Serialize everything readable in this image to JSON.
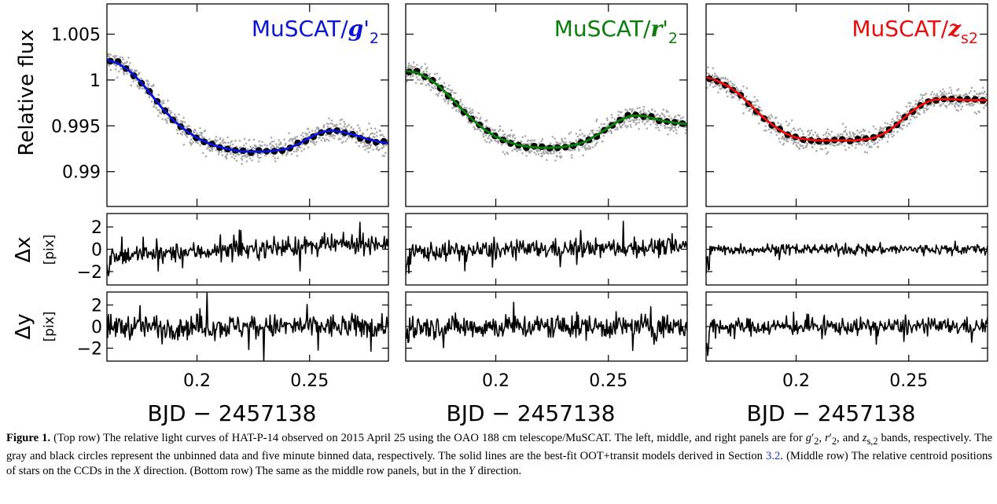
{
  "figure": {
    "xlabel": "BJD − 2457138",
    "xlim": [
      0.16,
      0.285
    ],
    "xticks": [
      "0.2",
      "0.25"
    ],
    "flux_ylabel": "Relative  flux",
    "flux_ylim": [
      0.9862,
      1.0083
    ],
    "flux_yticks": [
      "1.005",
      "1",
      "0.995",
      "0.99"
    ],
    "dx_label": "Δx",
    "dy_label": "Δy",
    "pix_label": "[pix]",
    "centroid_ylim": [
      -3.2,
      3.2
    ],
    "centroid_yticks": [
      "2",
      "0",
      "−2"
    ]
  },
  "panels": [
    {
      "band": "g",
      "title_prefix": "MuSCAT/",
      "title_filter": "g",
      "title_prime": "'",
      "title_sub": "2",
      "color": "#0a14d9"
    },
    {
      "band": "r",
      "title_prefix": "MuSCAT/",
      "title_filter": "r",
      "title_prime": "'",
      "title_sub": "2",
      "color": "#0a7d0a"
    },
    {
      "band": "z",
      "title_prefix": "MuSCAT/",
      "title_filter": "z",
      "title_prime": "",
      "title_sub": "s2",
      "color": "#e80e0e"
    }
  ],
  "chart_data": [
    {
      "type": "line",
      "title": "MuSCAT/g'2",
      "ylabel": "Relative flux",
      "xlabel": "BJD − 2457138",
      "xlim": [
        0.16,
        0.285
      ],
      "ylim": [
        0.9862,
        1.0083
      ],
      "series": [
        {
          "name": "model",
          "color": "#0a14d9",
          "x": [
            0.16,
            0.165,
            0.17,
            0.175,
            0.18,
            0.185,
            0.19,
            0.195,
            0.2,
            0.205,
            0.21,
            0.215,
            0.22,
            0.225,
            0.23,
            0.235,
            0.24,
            0.245,
            0.25,
            0.255,
            0.26,
            0.265,
            0.27,
            0.275,
            0.28,
            0.285
          ],
          "y": [
            1.0022,
            1.0018,
            1.001,
            0.9998,
            0.9983,
            0.9968,
            0.9955,
            0.9945,
            0.9937,
            0.9931,
            0.9927,
            0.9924,
            0.9922,
            0.9922,
            0.9922,
            0.9923,
            0.9925,
            0.993,
            0.9937,
            0.9943,
            0.9945,
            0.9943,
            0.994,
            0.9936,
            0.9933,
            0.9931
          ]
        }
      ]
    },
    {
      "type": "line",
      "title": "MuSCAT/r'2",
      "ylabel": "Relative flux",
      "xlabel": "BJD − 2457138",
      "xlim": [
        0.16,
        0.285
      ],
      "ylim": [
        0.9862,
        1.0083
      ],
      "series": [
        {
          "name": "model",
          "color": "#0a7d0a",
          "x": [
            0.16,
            0.165,
            0.17,
            0.175,
            0.18,
            0.185,
            0.19,
            0.195,
            0.2,
            0.205,
            0.21,
            0.215,
            0.22,
            0.225,
            0.23,
            0.235,
            0.24,
            0.245,
            0.25,
            0.255,
            0.26,
            0.265,
            0.27,
            0.275,
            0.28,
            0.285
          ],
          "y": [
            1.001,
            1.0008,
            1.0002,
            0.9993,
            0.9981,
            0.9968,
            0.9956,
            0.9946,
            0.9938,
            0.9933,
            0.9929,
            0.9927,
            0.9926,
            0.9926,
            0.9927,
            0.9929,
            0.9933,
            0.994,
            0.9948,
            0.9956,
            0.9961,
            0.9961,
            0.9958,
            0.9955,
            0.9953,
            0.9952
          ]
        }
      ]
    },
    {
      "type": "line",
      "title": "MuSCAT/zs2",
      "ylabel": "Relative flux",
      "xlabel": "BJD − 2457138",
      "xlim": [
        0.16,
        0.285
      ],
      "ylim": [
        0.9862,
        1.0083
      ],
      "series": [
        {
          "name": "model",
          "color": "#e80e0e",
          "x": [
            0.16,
            0.165,
            0.17,
            0.175,
            0.18,
            0.185,
            0.19,
            0.195,
            0.2,
            0.205,
            0.21,
            0.215,
            0.22,
            0.225,
            0.23,
            0.235,
            0.24,
            0.245,
            0.25,
            0.255,
            0.26,
            0.265,
            0.27,
            0.275,
            0.28,
            0.285
          ],
          "y": [
            1.0003,
            0.9999,
            0.9993,
            0.9984,
            0.9972,
            0.996,
            0.995,
            0.9942,
            0.9937,
            0.9935,
            0.9934,
            0.9934,
            0.9934,
            0.9934,
            0.9935,
            0.9937,
            0.9943,
            0.9952,
            0.9963,
            0.9972,
            0.9978,
            0.9979,
            0.9979,
            0.9978,
            0.9978,
            0.9978
          ]
        }
      ]
    }
  ]
}
